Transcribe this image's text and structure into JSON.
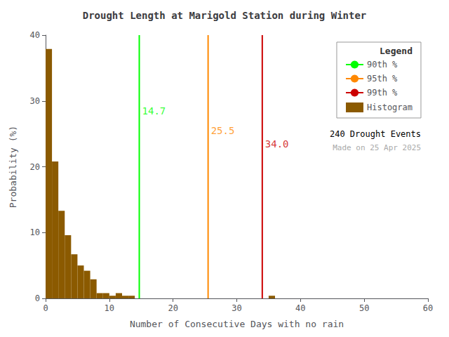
{
  "chart_data": {
    "type": "bar",
    "title": "Drought Length at Marigold Station during Winter",
    "xlabel": "Number of Consecutive Days with no rain",
    "ylabel": "Probability (%)",
    "name": "Histogram",
    "color": "#8B5A00",
    "bins": [
      0,
      1,
      2,
      3,
      4,
      5,
      6,
      7,
      8,
      9,
      10,
      11,
      12,
      13,
      14,
      15,
      16,
      17,
      18,
      19,
      20,
      21,
      22,
      23,
      24,
      25,
      26,
      27,
      28,
      29,
      30,
      31,
      32,
      33,
      34,
      35,
      36,
      37,
      38,
      39,
      40,
      41,
      42,
      43,
      44,
      45,
      46,
      47,
      48,
      49,
      50,
      51,
      52,
      53,
      54,
      55,
      56,
      57,
      58,
      59,
      60
    ],
    "values": [
      37.9,
      20.8,
      13.3,
      9.6,
      6.7,
      5.0,
      4.2,
      2.9,
      0.8,
      0.8,
      0.4,
      0.8,
      0.4,
      0.4,
      0.0,
      0.0,
      0.0,
      0.0,
      0.0,
      0.0,
      0.0,
      0.0,
      0.0,
      0.0,
      0.0,
      0.0,
      0.0,
      0.0,
      0.0,
      0.0,
      0.0,
      0.0,
      0.0,
      0.0,
      0.0,
      0.4,
      0.0,
      0.0,
      0.0,
      0.0,
      0.0,
      0.0,
      0.0,
      0.0,
      0.0,
      0.0,
      0.0,
      0.0,
      0.0,
      0.0,
      0.0,
      0.0,
      0.0,
      0.0,
      0.0,
      0.0,
      0.0,
      0.0,
      0.0,
      0.0
    ],
    "lines": [
      {
        "name": "90th %",
        "x": 14.7,
        "color": "#00FF00",
        "label": "14.7",
        "label_y": 28.5
      },
      {
        "name": "95th %",
        "x": 25.5,
        "color": "#FF8800",
        "label": "25.5",
        "label_y": 25.5
      },
      {
        "name": "99th %",
        "x": 34.0,
        "color": "#CC0000",
        "label": "34.0",
        "label_y": 23.5
      }
    ],
    "annotations": [
      {
        "text": "240 Drought Events",
        "color": "#000000"
      },
      {
        "text": "Made on 25 Apr 2025",
        "color": "#AAAAAA"
      }
    ],
    "legend_title": "Legend",
    "legend": "upper right",
    "xlim": [
      0,
      60
    ],
    "xticks": [
      0,
      10,
      20,
      30,
      40,
      50,
      60
    ],
    "ylim": [
      0,
      40
    ],
    "yticks": [
      0,
      10,
      20,
      30,
      40
    ],
    "grid": false
  }
}
